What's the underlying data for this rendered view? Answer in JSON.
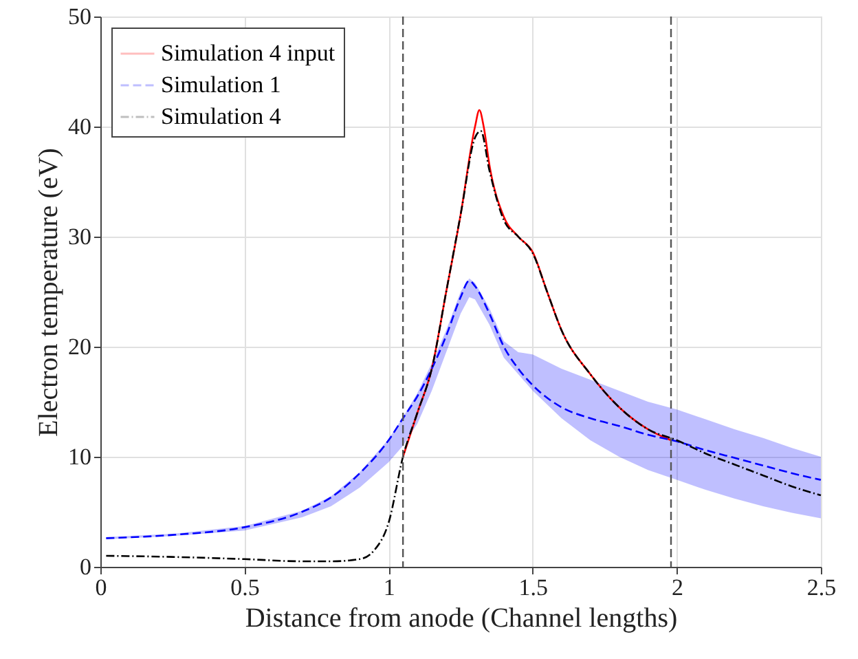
{
  "chart_data": {
    "type": "line",
    "xlabel": "Distance from anode (Channel lengths)",
    "ylabel": "Electron temperature (eV)",
    "xlim": [
      0,
      2.5
    ],
    "xticks": [
      0,
      0.5,
      1,
      1.5,
      2,
      2.5
    ],
    "ylim": [
      0,
      50
    ],
    "yticks": [
      0,
      10,
      20,
      30,
      40,
      50
    ],
    "grid": true,
    "legend": "top left",
    "series": [
      {
        "name": "Simulation 4 input",
        "color": "#ff0000",
        "line_style": "solid",
        "x": [
          1.05,
          1.1,
          1.15,
          1.2,
          1.25,
          1.3,
          1.315,
          1.33,
          1.35,
          1.4,
          1.45,
          1.5,
          1.55,
          1.6,
          1.7,
          1.8,
          1.9,
          1.98
        ],
        "values": [
          10,
          14,
          18,
          25,
          32,
          40,
          41.5,
          40,
          36.5,
          31.8,
          30,
          28.6,
          25,
          21.5,
          17.5,
          14.5,
          12.5,
          11.5
        ]
      },
      {
        "name": "Simulation 1",
        "color": "#0000ff",
        "line_style": "dashed",
        "x": [
          0.02,
          0.25,
          0.5,
          0.7,
          0.8,
          0.9,
          1.0,
          1.05,
          1.1,
          1.15,
          1.2,
          1.25,
          1.28,
          1.3,
          1.35,
          1.4,
          1.45,
          1.5,
          1.6,
          1.7,
          1.8,
          1.9,
          2.0,
          2.1,
          2.2,
          2.3,
          2.4,
          2.5
        ],
        "values": [
          2.6,
          2.9,
          3.6,
          5,
          6.3,
          8.5,
          11.5,
          13.5,
          15.5,
          18,
          21,
          24.5,
          26,
          25.5,
          23,
          20,
          18,
          16.5,
          14.5,
          13.5,
          12.8,
          12,
          11.4,
          10.6,
          9.9,
          9.2,
          8.5,
          7.9
        ],
        "lower": [
          2.5,
          2.8,
          3.3,
          4.5,
          5.5,
          7.2,
          9.5,
          11,
          13,
          16,
          19.5,
          23,
          24.5,
          24.3,
          22,
          19,
          17.5,
          16,
          13.5,
          11.5,
          10,
          8.8,
          7.9,
          7,
          6.2,
          5.5,
          4.9,
          4.4
        ],
        "upper": [
          2.7,
          3.0,
          3.7,
          5.1,
          6.4,
          8.6,
          11.6,
          13.6,
          15.8,
          18.5,
          21.5,
          25,
          26.2,
          25.8,
          23.5,
          20.5,
          19.5,
          19.3,
          18,
          17,
          16,
          15,
          14.3,
          13.4,
          12.5,
          11.7,
          10.8,
          10
        ]
      },
      {
        "name": "Simulation 4",
        "color": "#000000",
        "line_style": "dashdot",
        "x": [
          0.02,
          0.25,
          0.5,
          0.7,
          0.8,
          0.9,
          0.95,
          1.0,
          1.05,
          1.1,
          1.15,
          1.2,
          1.25,
          1.3,
          1.32,
          1.35,
          1.4,
          1.45,
          1.5,
          1.55,
          1.6,
          1.7,
          1.8,
          1.9,
          2.0,
          2.1,
          2.2,
          2.3,
          2.4,
          2.5
        ],
        "values": [
          1.0,
          0.9,
          0.7,
          0.5,
          0.5,
          0.7,
          1.5,
          4,
          10,
          14,
          18,
          25,
          32,
          39,
          39.6,
          36,
          31.5,
          30,
          28.5,
          25,
          21.5,
          17.5,
          14.5,
          12.5,
          11.5,
          10.3,
          9.3,
          8.3,
          7.3,
          6.5
        ]
      }
    ],
    "ref_lines": [
      {
        "axis": "x",
        "value": 1.05,
        "color": "#555555",
        "line_style": "dashed"
      },
      {
        "axis": "x",
        "value": 1.98,
        "color": "#555555",
        "line_style": "dashed"
      }
    ]
  }
}
